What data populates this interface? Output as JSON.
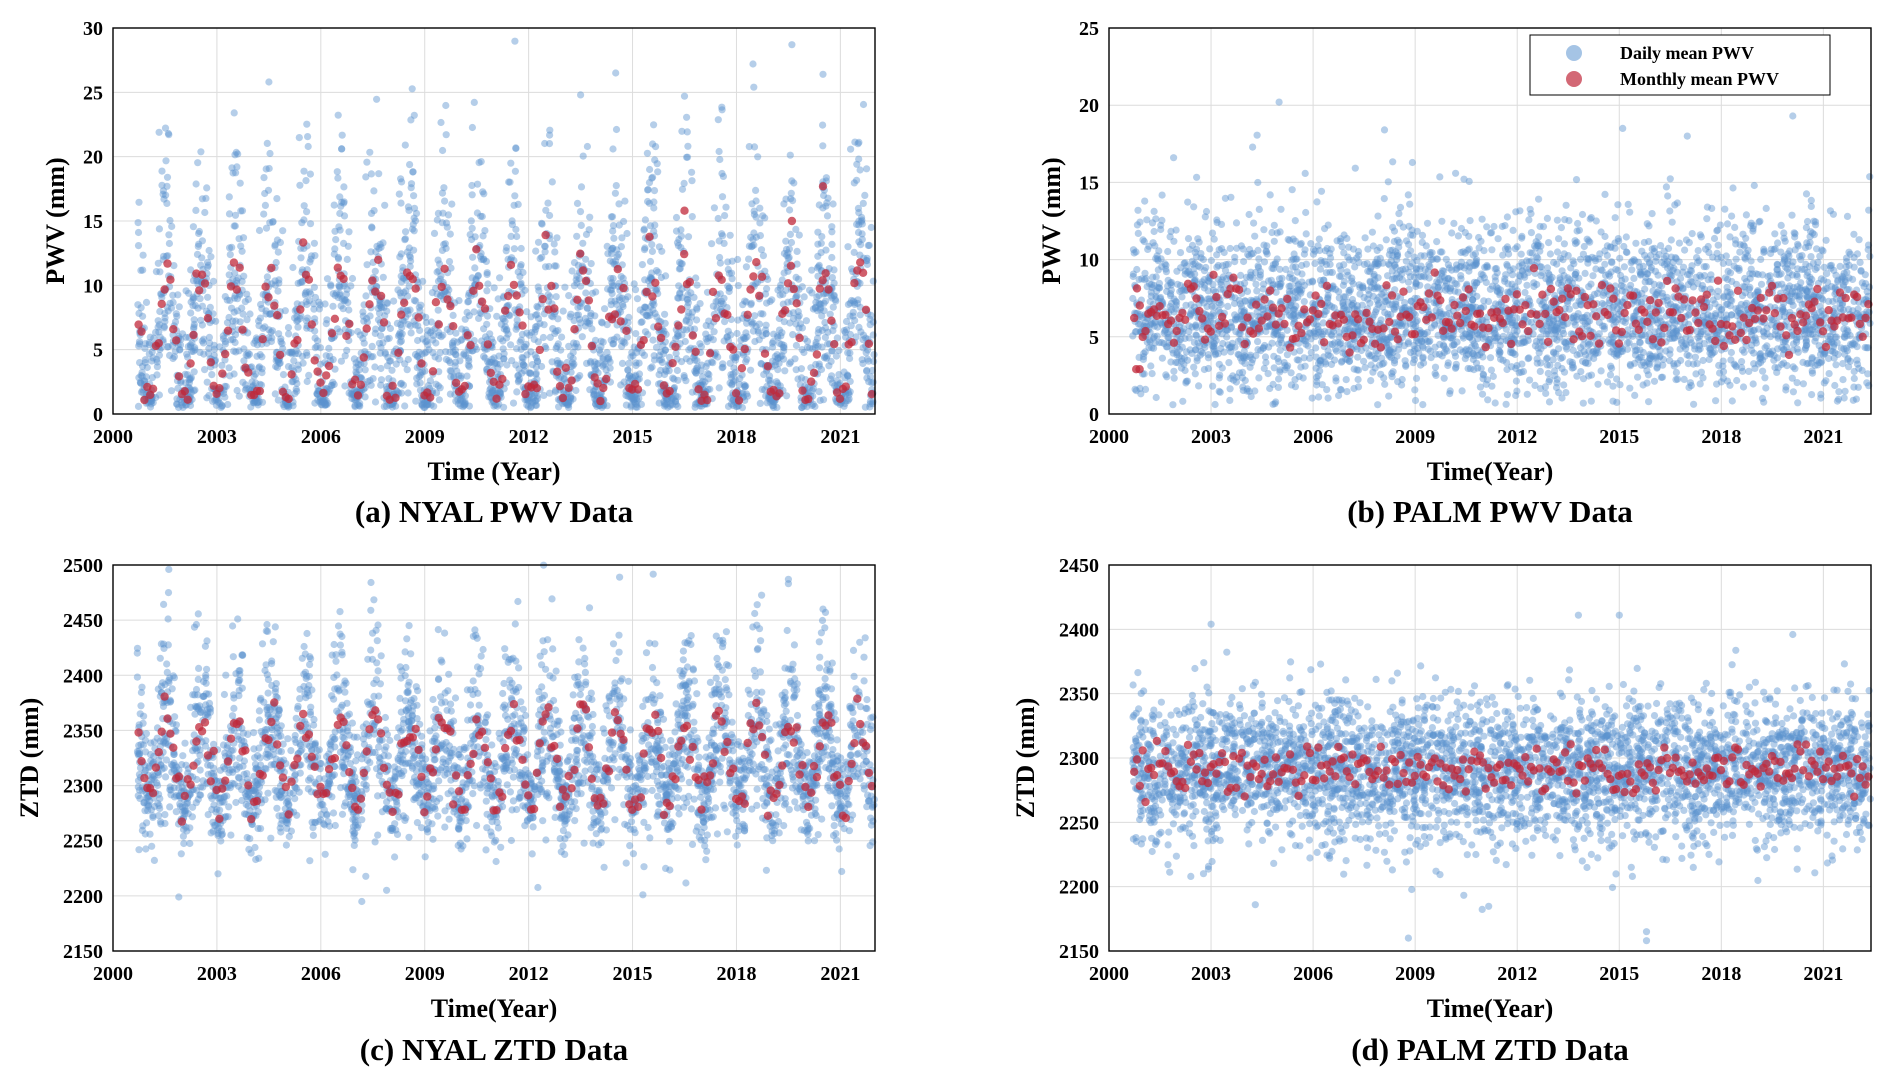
{
  "colors": {
    "daily": "#5b93cf",
    "monthly": "#c0283a"
  },
  "chart_data": [
    {
      "type": "scatter",
      "caption": "(a) NYAL PWV Data",
      "xlabel": "Time (Year)",
      "ylabel": "PWV (mm)",
      "xlim": [
        2000,
        2022
      ],
      "ylim": [
        0,
        30
      ],
      "xticks": [
        2000,
        2003,
        2006,
        2009,
        2012,
        2015,
        2018,
        2021
      ],
      "yticks": [
        0,
        5,
        10,
        15,
        20,
        25,
        30
      ],
      "grid": true,
      "legend": null,
      "x_start": 2000.7,
      "series": [
        {
          "name": "Daily mean PWV",
          "marker": "daily",
          "pattern": "seasonal",
          "mean": 6,
          "amplitude": 5,
          "spread": 2.2,
          "skew": 0.45,
          "floor": 0.5,
          "n_per_year": 150,
          "points": [
            [
              2001.6,
              21.8
            ],
            [
              2003.5,
              23.4
            ],
            [
              2004.5,
              25.8
            ],
            [
              2006.6,
              20.6
            ],
            [
              2013.5,
              24.8
            ],
            [
              2016.5,
              24.7
            ],
            [
              2017.5,
              20.4
            ],
            [
              2018.5,
              25.4
            ],
            [
              2019.6,
              28.7
            ],
            [
              2020.5,
              26.4
            ]
          ]
        },
        {
          "name": "Monthly mean PWV",
          "marker": "monthly",
          "pattern": "monthly",
          "mean": 6,
          "amplitude": 5,
          "spread": 1.2,
          "floor": 1,
          "points": [
            [
              2016.5,
              15.8
            ],
            [
              2019.6,
              15.0
            ],
            [
              2020.5,
              17.7
            ]
          ]
        }
      ]
    },
    {
      "type": "scatter",
      "caption": "(b) PALM PWV Data",
      "xlabel": "Time(Year)",
      "ylabel": "PWV (mm)",
      "xlim": [
        2000,
        2022.4
      ],
      "ylim": [
        0,
        25
      ],
      "xticks": [
        2000,
        2003,
        2006,
        2009,
        2012,
        2015,
        2018,
        2021
      ],
      "yticks": [
        0,
        5,
        10,
        15,
        20,
        25
      ],
      "grid": true,
      "legend": {
        "position": "top-right",
        "entries": [
          "Daily mean PWV",
          "Monthly mean PWV"
        ]
      },
      "x_start": 2000.7,
      "series": [
        {
          "name": "Daily mean PWV",
          "marker": "daily",
          "pattern": "noise",
          "mean": 6.5,
          "amplitude": 1.5,
          "spread": 2.4,
          "skew": 0.25,
          "floor": 0.6,
          "n_per_year": 170,
          "points": [
            [
              2005.0,
              20.2
            ],
            [
              2008.1,
              18.4
            ],
            [
              2015.1,
              18.5
            ],
            [
              2017.0,
              18.0
            ],
            [
              2020.1,
              19.3
            ],
            [
              2001.9,
              16.6
            ]
          ]
        },
        {
          "name": "Monthly mean PWV",
          "marker": "monthly",
          "pattern": "monthly",
          "mean": 6.5,
          "amplitude": 1.5,
          "spread": 1.0,
          "floor": 3,
          "points": [
            [
              2000.8,
              2.9
            ],
            [
              2000.9,
              2.9
            ]
          ]
        }
      ]
    },
    {
      "type": "scatter",
      "caption": "(c) NYAL ZTD Data",
      "xlabel": "Time(Year)",
      "ylabel": "ZTD (mm)",
      "xlim": [
        2000,
        2022
      ],
      "ylim": [
        2150,
        2500
      ],
      "xticks": [
        2000,
        2003,
        2006,
        2009,
        2012,
        2015,
        2018,
        2021
      ],
      "yticks": [
        2150,
        2200,
        2250,
        2300,
        2350,
        2400,
        2450,
        2500
      ],
      "grid": true,
      "legend": null,
      "x_start": 2000.7,
      "series": [
        {
          "name": "Daily mean PWV",
          "marker": "daily",
          "pattern": "seasonal",
          "mean": 2322,
          "amplitude": 38,
          "spread": 22,
          "skew": 0.15,
          "floor": 2190,
          "n_per_year": 150,
          "points": [
            [
              2001.9,
              2199
            ],
            [
              2003.6,
              2451
            ],
            [
              2015.3,
              2201
            ],
            [
              2018.6,
              2464
            ],
            [
              2019.5,
              2487
            ],
            [
              2019.5,
              2483
            ],
            [
              2020.5,
              2460
            ],
            [
              2007.9,
              2205
            ]
          ]
        },
        {
          "name": "Monthly mean PWV",
          "marker": "monthly",
          "pattern": "monthly",
          "mean": 2322,
          "amplitude": 38,
          "spread": 10,
          "floor": 2240,
          "points": []
        }
      ]
    },
    {
      "type": "scatter",
      "caption": "(d) PALM ZTD Data",
      "xlabel": "Time(Year)",
      "ylabel": "ZTD (mm)",
      "xlim": [
        2000,
        2022.4
      ],
      "ylim": [
        2150,
        2450
      ],
      "xticks": [
        2000,
        2003,
        2006,
        2009,
        2012,
        2015,
        2018,
        2021
      ],
      "yticks": [
        2150,
        2200,
        2250,
        2300,
        2350,
        2400,
        2450
      ],
      "grid": true,
      "legend": null,
      "x_start": 2000.7,
      "series": [
        {
          "name": "Daily mean PWV",
          "marker": "daily",
          "pattern": "noise",
          "mean": 2290,
          "amplitude": 10,
          "spread": 28,
          "skew": 0.0,
          "floor": 2180,
          "n_per_year": 170,
          "points": [
            [
              2015.8,
              2158
            ],
            [
              2015.8,
              2165
            ],
            [
              2008.8,
              2160
            ],
            [
              2003.0,
              2404
            ],
            [
              2015.0,
              2411
            ],
            [
              2013.8,
              2411
            ],
            [
              2020.1,
              2396
            ],
            [
              2004.3,
              2186
            ]
          ]
        },
        {
          "name": "Monthly mean PWV",
          "marker": "monthly",
          "pattern": "monthly",
          "mean": 2290,
          "amplitude": 10,
          "spread": 9,
          "floor": 2240,
          "points": []
        }
      ]
    }
  ]
}
